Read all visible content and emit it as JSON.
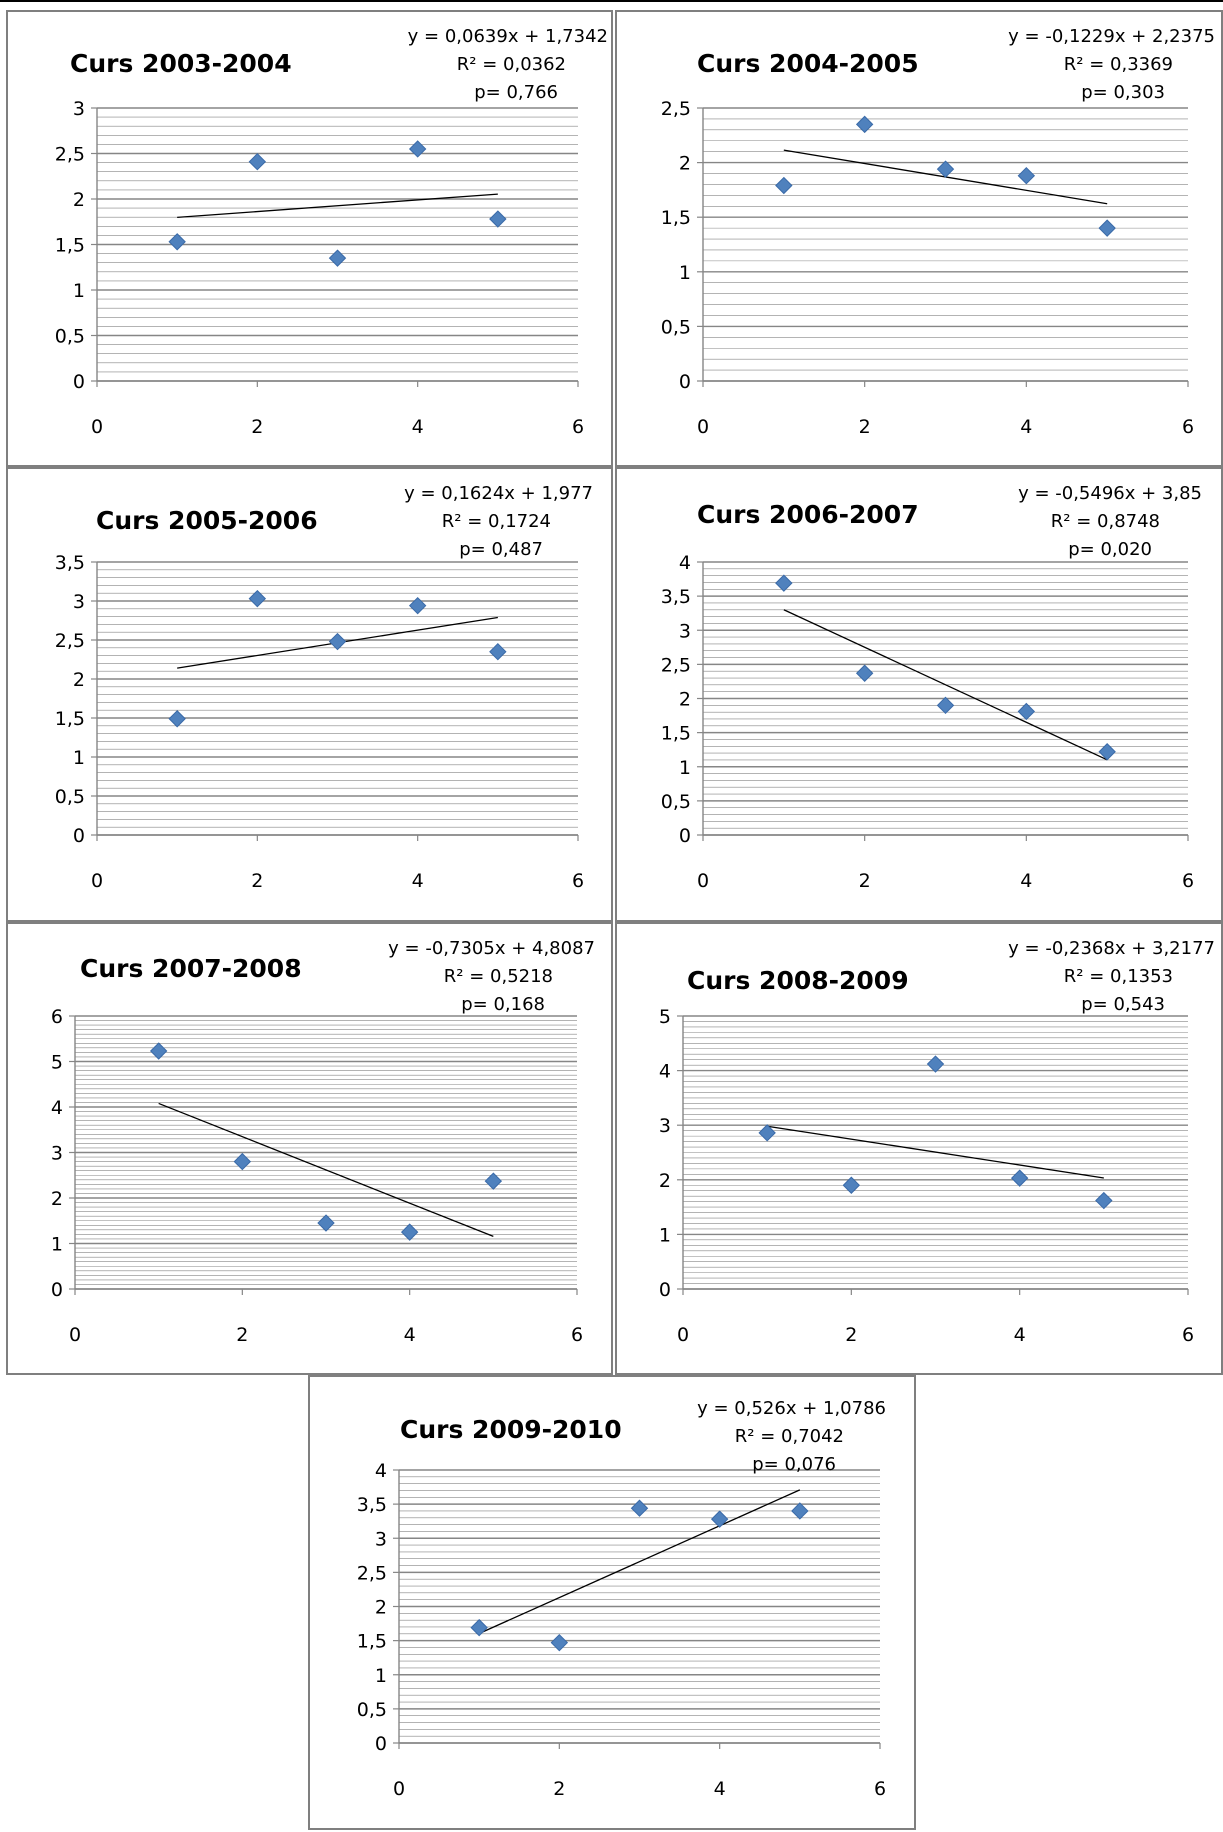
{
  "chart_data": [
    {
      "type": "scatter",
      "title": "Curs 2003-2004",
      "equation": "y = 0,0639x + 1,7342",
      "r2": "R² = 0,0362",
      "p": "p= 0,766",
      "points": [
        [
          1,
          1.53
        ],
        [
          2,
          2.41
        ],
        [
          3,
          1.35
        ],
        [
          4,
          2.55
        ],
        [
          5,
          1.78
        ]
      ],
      "trendline": {
        "slope": 0.0639,
        "intercept": 1.7342,
        "x_range": [
          1,
          5
        ]
      },
      "xlim": [
        0,
        6
      ],
      "ylim": [
        0,
        3
      ],
      "xticks": [
        0,
        2,
        4,
        6
      ],
      "yticks": [
        0,
        0.5,
        1,
        1.5,
        2,
        2.5,
        3
      ],
      "xtick_labels": [
        "0",
        "2",
        "4",
        "6"
      ],
      "ytick_labels": [
        "0",
        "0,5",
        "1",
        "1,5",
        "2",
        "2,5",
        "3"
      ],
      "xlabel": "",
      "ylabel": "",
      "grid": true,
      "legend": "none"
    },
    {
      "type": "scatter",
      "title": "Curs 2004-2005",
      "equation": "y = -0,1229x + 2,2375",
      "r2": "R² = 0,3369",
      "p": "p= 0,303",
      "points": [
        [
          1,
          1.79
        ],
        [
          2,
          2.35
        ],
        [
          3,
          1.94
        ],
        [
          4,
          1.88
        ],
        [
          5,
          1.4
        ]
      ],
      "trendline": {
        "slope": -0.1229,
        "intercept": 2.2375,
        "x_range": [
          1,
          5
        ]
      },
      "xlim": [
        0,
        6
      ],
      "ylim": [
        0,
        2.5
      ],
      "xticks": [
        0,
        2,
        4,
        6
      ],
      "yticks": [
        0,
        0.5,
        1,
        1.5,
        2,
        2.5
      ],
      "xtick_labels": [
        "0",
        "2",
        "4",
        "6"
      ],
      "ytick_labels": [
        "0",
        "0,5",
        "1",
        "1,5",
        "2",
        "2,5"
      ],
      "xlabel": "",
      "ylabel": "",
      "grid": true,
      "legend": "none"
    },
    {
      "type": "scatter",
      "title": "Curs 2005-2006",
      "equation": "y = 0,1624x + 1,977",
      "r2": "R² = 0,1724",
      "p": "p= 0,487",
      "points": [
        [
          1,
          1.49
        ],
        [
          2,
          3.03
        ],
        [
          3,
          2.48
        ],
        [
          4,
          2.94
        ],
        [
          5,
          2.35
        ]
      ],
      "trendline": {
        "slope": 0.1624,
        "intercept": 1.977,
        "x_range": [
          1,
          5
        ]
      },
      "xlim": [
        0,
        6
      ],
      "ylim": [
        0,
        3.5
      ],
      "xticks": [
        0,
        2,
        4,
        6
      ],
      "yticks": [
        0,
        0.5,
        1,
        1.5,
        2,
        2.5,
        3,
        3.5
      ],
      "xtick_labels": [
        "0",
        "2",
        "4",
        "6"
      ],
      "ytick_labels": [
        "0",
        "0,5",
        "1",
        "1,5",
        "2",
        "2,5",
        "3",
        "3,5"
      ],
      "xlabel": "",
      "ylabel": "",
      "grid": true,
      "legend": "none"
    },
    {
      "type": "scatter",
      "title": "Curs 2006-2007",
      "equation": "y = -0,5496x + 3,85",
      "r2": "R² = 0,8748",
      "p": "p= 0,020",
      "points": [
        [
          1,
          3.69
        ],
        [
          2,
          2.37
        ],
        [
          3,
          1.9
        ],
        [
          4,
          1.81
        ],
        [
          5,
          1.22
        ]
      ],
      "trendline": {
        "slope": -0.5496,
        "intercept": 3.85,
        "x_range": [
          1,
          5
        ]
      },
      "xlim": [
        0,
        6
      ],
      "ylim": [
        0,
        4
      ],
      "xticks": [
        0,
        2,
        4,
        6
      ],
      "yticks": [
        0,
        0.5,
        1,
        1.5,
        2,
        2.5,
        3,
        3.5,
        4
      ],
      "xtick_labels": [
        "0",
        "2",
        "4",
        "6"
      ],
      "ytick_labels": [
        "0",
        "0,5",
        "1",
        "1,5",
        "2",
        "2,5",
        "3",
        "3,5",
        "4"
      ],
      "xlabel": "",
      "ylabel": "",
      "grid": true,
      "legend": "none"
    },
    {
      "type": "scatter",
      "title": "Curs 2007-2008",
      "equation": "y = -0,7305x + 4,8087",
      "r2": "R² = 0,5218",
      "p": "p= 0,168",
      "points": [
        [
          1,
          5.23
        ],
        [
          2,
          2.8
        ],
        [
          3,
          1.45
        ],
        [
          4,
          1.25
        ],
        [
          5,
          2.37
        ]
      ],
      "trendline": {
        "slope": -0.7305,
        "intercept": 4.8087,
        "x_range": [
          1,
          5
        ]
      },
      "xlim": [
        0,
        6
      ],
      "ylim": [
        0,
        6
      ],
      "xticks": [
        0,
        2,
        4,
        6
      ],
      "yticks": [
        0,
        1,
        2,
        3,
        4,
        5,
        6
      ],
      "xtick_labels": [
        "0",
        "2",
        "4",
        "6"
      ],
      "ytick_labels": [
        "0",
        "1",
        "2",
        "3",
        "4",
        "5",
        "6"
      ],
      "xlabel": "",
      "ylabel": "",
      "grid": true,
      "legend": "none"
    },
    {
      "type": "scatter",
      "title": "Curs 2008-2009",
      "equation": "y = -0,2368x + 3,2177",
      "r2": "R² = 0,1353",
      "p": "p= 0,543",
      "points": [
        [
          1,
          2.86
        ],
        [
          2,
          1.9
        ],
        [
          3,
          4.12
        ],
        [
          4,
          2.03
        ],
        [
          5,
          1.62
        ]
      ],
      "trendline": {
        "slope": -0.2368,
        "intercept": 3.2177,
        "x_range": [
          1,
          5
        ]
      },
      "xlim": [
        0,
        6
      ],
      "ylim": [
        0,
        5
      ],
      "xticks": [
        0,
        2,
        4,
        6
      ],
      "yticks": [
        0,
        1,
        2,
        3,
        4,
        5
      ],
      "xtick_labels": [
        "0",
        "2",
        "4",
        "6"
      ],
      "ytick_labels": [
        "0",
        "1",
        "2",
        "3",
        "4",
        "5"
      ],
      "xlabel": "",
      "ylabel": "",
      "grid": true,
      "legend": "none"
    },
    {
      "type": "scatter",
      "title": "Curs 2009-2010",
      "equation": "y = 0,526x + 1,0786",
      "r2": "R² = 0,7042",
      "p": "p= 0,076",
      "points": [
        [
          1,
          1.69
        ],
        [
          2,
          1.47
        ],
        [
          3,
          3.44
        ],
        [
          4,
          3.28
        ],
        [
          5,
          3.4
        ]
      ],
      "trendline": {
        "slope": 0.526,
        "intercept": 1.0786,
        "x_range": [
          1,
          5
        ]
      },
      "xlim": [
        0,
        6
      ],
      "ylim": [
        0,
        4
      ],
      "xticks": [
        0,
        2,
        4,
        6
      ],
      "yticks": [
        0,
        0.5,
        1,
        1.5,
        2,
        2.5,
        3,
        3.5,
        4
      ],
      "xtick_labels": [
        "0",
        "2",
        "4",
        "6"
      ],
      "ytick_labels": [
        "0",
        "0,5",
        "1",
        "1,5",
        "2",
        "2,5",
        "3",
        "3,5",
        "4"
      ],
      "xlabel": "",
      "ylabel": "",
      "grid": true,
      "legend": "none"
    }
  ],
  "colors": {
    "marker": "#4f81bd",
    "marker_edge": "#3a6aa8",
    "trendline": "#000000",
    "gridline": "#868686",
    "axis": "#868686"
  }
}
